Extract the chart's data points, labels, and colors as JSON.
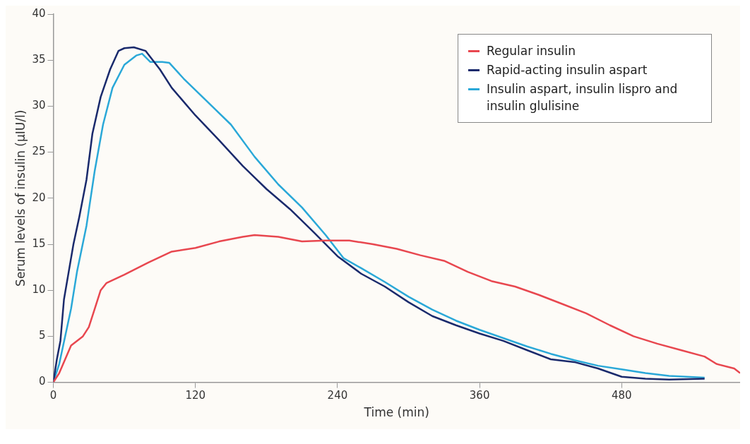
{
  "chart_data": {
    "type": "line",
    "xlabel": "Time (min)",
    "ylabel": "Serum levels of insulin (µIU/l)",
    "xlim": [
      0,
      580
    ],
    "xticks": [
      0,
      120,
      240,
      360,
      480
    ],
    "ylim": [
      0,
      40
    ],
    "yticks": [
      0,
      5,
      10,
      15,
      20,
      25,
      30,
      35,
      40
    ],
    "grid": false,
    "legend": "top right",
    "marker": "none",
    "line_style": "solid",
    "series": [
      {
        "name": "Regular insulin",
        "color": "#e8474f",
        "x": [
          0,
          5,
          10,
          15,
          25,
          30,
          35,
          40,
          45,
          60,
          80,
          100,
          120,
          140,
          160,
          170,
          190,
          210,
          230,
          250,
          270,
          290,
          310,
          330,
          350,
          370,
          390,
          410,
          430,
          450,
          470,
          490,
          510,
          530,
          550,
          560,
          575,
          580
        ],
        "values": [
          0,
          1,
          2.5,
          4,
          5,
          6,
          8,
          10,
          10.8,
          11.7,
          13,
          14.2,
          14.6,
          15.3,
          15.8,
          16,
          15.8,
          15.3,
          15.4,
          15.4,
          15,
          14.5,
          13.8,
          13.2,
          12,
          11,
          10.4,
          9.5,
          8.5,
          7.5,
          6.2,
          5,
          4.2,
          3.5,
          2.8,
          2,
          1.5,
          1
        ]
      },
      {
        "name": "Rapid-acting insulin aspart",
        "color": "#1a2a6c",
        "x": [
          0,
          3,
          6,
          9,
          13,
          17,
          22,
          28,
          33,
          40,
          48,
          55,
          60,
          68,
          78,
          90,
          100,
          120,
          140,
          160,
          180,
          200,
          220,
          240,
          260,
          280,
          300,
          320,
          340,
          360,
          380,
          400,
          420,
          440,
          460,
          480,
          500,
          520,
          550
        ],
        "values": [
          0,
          2.5,
          4.5,
          9,
          12,
          15,
          18,
          22,
          27,
          31,
          34,
          36,
          36.3,
          36.4,
          36,
          34,
          32,
          29,
          26.3,
          23.5,
          21,
          18.8,
          16.3,
          13.7,
          11.8,
          10.4,
          8.7,
          7.2,
          6.2,
          5.3,
          4.5,
          3.5,
          2.5,
          2.2,
          1.5,
          0.6,
          0.4,
          0.3,
          0.4
        ]
      },
      {
        "name": "Insulin aspart, insulin lispro and insulin glulisine",
        "color": "#2aa8d8",
        "x": [
          0,
          5,
          10,
          15,
          20,
          28,
          35,
          42,
          50,
          60,
          70,
          75,
          82,
          92,
          98,
          110,
          130,
          150,
          170,
          190,
          210,
          230,
          245,
          260,
          280,
          300,
          320,
          340,
          360,
          380,
          400,
          420,
          440,
          460,
          480,
          500,
          520,
          550
        ],
        "values": [
          0,
          2,
          5,
          8,
          12,
          17,
          23,
          28,
          32,
          34.5,
          35.5,
          35.7,
          34.8,
          34.8,
          34.7,
          33,
          30.5,
          28,
          24.5,
          21.5,
          19,
          16,
          13.5,
          12.4,
          10.9,
          9.3,
          7.9,
          6.7,
          5.7,
          4.8,
          3.9,
          3.1,
          2.4,
          1.8,
          1.4,
          1,
          0.7,
          0.5
        ]
      }
    ]
  }
}
